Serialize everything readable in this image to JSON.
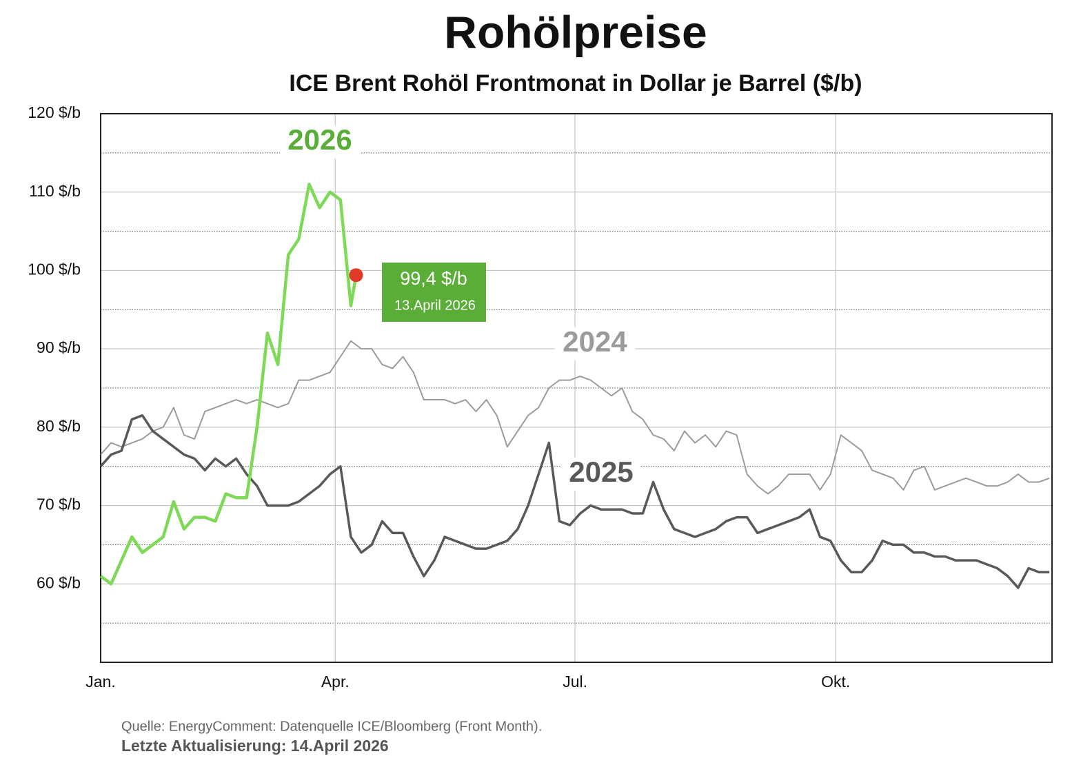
{
  "chart_data": {
    "type": "line",
    "title": "Rohölpreise",
    "subtitle": "ICE Brent Rohöl Frontmonat in Dollar je Barrel ($/b)",
    "x": [
      0,
      4,
      8,
      12,
      16,
      20,
      24,
      28,
      32,
      36,
      40,
      44,
      48,
      52,
      56,
      60,
      64,
      68,
      72,
      76,
      80,
      84,
      88,
      92,
      96,
      98,
      100,
      104,
      108,
      112,
      116,
      120,
      124,
      128,
      132,
      136,
      140,
      144,
      148,
      152,
      156,
      160,
      164,
      168,
      172,
      176,
      180,
      184,
      188,
      192,
      196,
      200,
      204,
      208,
      212,
      216,
      220,
      224,
      228,
      232,
      236,
      240,
      244,
      248,
      252,
      256,
      260,
      264,
      268,
      272,
      276,
      280,
      284,
      288,
      292,
      296,
      300,
      304,
      308,
      312,
      316,
      320,
      324,
      328,
      332,
      336,
      340,
      344,
      348,
      352,
      356,
      360,
      364
    ],
    "xlim": [
      0,
      365
    ],
    "xticks": [
      {
        "value": 0,
        "label": "Jan."
      },
      {
        "value": 90,
        "label": "Apr."
      },
      {
        "value": 182,
        "label": "Jul."
      },
      {
        "value": 282,
        "label": "Okt."
      }
    ],
    "ylim": [
      50,
      120
    ],
    "yticks": [
      {
        "value": 60,
        "label": "60 $/b"
      },
      {
        "value": 70,
        "label": "70 $/b"
      },
      {
        "value": 80,
        "label": "80 $/b"
      },
      {
        "value": 90,
        "label": "90 $/b"
      },
      {
        "value": 100,
        "label": "100 $/b"
      },
      {
        "value": 110,
        "label": "110 $/b"
      },
      {
        "value": 120,
        "label": "120 $/b"
      }
    ],
    "minor_yticks": [
      55,
      65,
      75,
      85,
      95,
      105,
      115
    ],
    "grid": true,
    "series": [
      {
        "name": "2024",
        "color": "#9b9b9b",
        "values": [
          76.5,
          78,
          77.5,
          78,
          78.5,
          79.5,
          80,
          82.5,
          79,
          78.5,
          82,
          82.5,
          83,
          83.5,
          83,
          83.5,
          83,
          82.5,
          83,
          86,
          86,
          86.5,
          87,
          89,
          91,
          90.5,
          90,
          90,
          88,
          87.5,
          89,
          87,
          83.5,
          83.5,
          83.5,
          83,
          83.5,
          82,
          83.5,
          81.5,
          77.5,
          79.5,
          81.5,
          82.5,
          85,
          86,
          86,
          86.5,
          86,
          85,
          84,
          85,
          82,
          81,
          79,
          78.5,
          77,
          79.5,
          78,
          79,
          77.5,
          79.5,
          79,
          74,
          72.5,
          71.5,
          72.5,
          74,
          74,
          74,
          72,
          74,
          79,
          78,
          77,
          74.5,
          74,
          73.5,
          72,
          74.5,
          75,
          72,
          72.5,
          73,
          73.5,
          73,
          72.5,
          72.5,
          73,
          74,
          73,
          73,
          73.5
        ]
      },
      {
        "name": "2025",
        "color": "#595959",
        "values": [
          75,
          76.5,
          77,
          81,
          81.5,
          79.5,
          78.5,
          77.5,
          76.5,
          76,
          74.5,
          76,
          75,
          76,
          74,
          72.5,
          70,
          70,
          70,
          70.5,
          71.5,
          72.5,
          74,
          75,
          66,
          65,
          64,
          65,
          68,
          66.5,
          66.5,
          63.5,
          61,
          63,
          66,
          65.5,
          65,
          64.5,
          64.5,
          65,
          65.5,
          67,
          70,
          74,
          78,
          68,
          67.5,
          69,
          70,
          69.5,
          69.5,
          69.5,
          69,
          69,
          73,
          69.5,
          67,
          66.5,
          66,
          66.5,
          67,
          68,
          68.5,
          68.5,
          66.5,
          67,
          67.5,
          68,
          68.5,
          69.5,
          66,
          65.5,
          63,
          61.5,
          61.5,
          63,
          65.5,
          65,
          65,
          64,
          64,
          63.5,
          63.5,
          63,
          63,
          63,
          62.5,
          62,
          61,
          59.5,
          62,
          61.5,
          61.5
        ]
      },
      {
        "name": "2026",
        "color": "#7ed957",
        "label_color": "#5aae37",
        "values": [
          61,
          60,
          63,
          66,
          64,
          65,
          66,
          70.5,
          67,
          68.5,
          68.5,
          68,
          71.5,
          71,
          71,
          80,
          92,
          88,
          102,
          104,
          111,
          108,
          110,
          109,
          95.5,
          99.4,
          null,
          null,
          null,
          null,
          null,
          null,
          null,
          null,
          null,
          null,
          null,
          null,
          null,
          null,
          null,
          null,
          null,
          null,
          null,
          null,
          null,
          null,
          null,
          null,
          null,
          null,
          null,
          null,
          null,
          null,
          null,
          null,
          null,
          null,
          null,
          null,
          null,
          null,
          null,
          null,
          null,
          null,
          null,
          null,
          null,
          null,
          null,
          null,
          null,
          null,
          null,
          null,
          null,
          null,
          null,
          null,
          null,
          null,
          null,
          null,
          null,
          null,
          null,
          null,
          null,
          null,
          null
        ]
      }
    ],
    "annotation": {
      "value_label": "99,4 $/b",
      "date": "13.April 2026",
      "box_color": "#5aae37",
      "dot_color": "#e03a28"
    },
    "source": "Quelle: EnergyComment: Datenquelle ICE/Bloomberg (Front Month).",
    "updated": "Letzte Aktualisierung: 14.April 2026"
  }
}
